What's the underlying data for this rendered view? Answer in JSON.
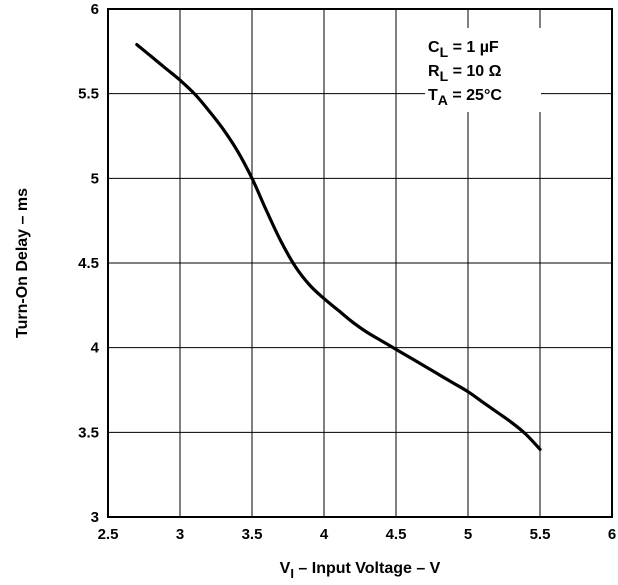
{
  "chart_data": {
    "type": "line",
    "title": "",
    "xlabel": "V",
    "xlabel_sub": "I",
    "xlabel_rest": " – Input Voltage – V",
    "ylabel": "Turn-On Delay – ms",
    "xlim": [
      2.5,
      6
    ],
    "ylim": [
      3,
      6
    ],
    "x_ticks": [
      2.5,
      3,
      3.5,
      4,
      4.5,
      5,
      5.5,
      6
    ],
    "y_ticks": [
      3,
      3.5,
      4,
      4.5,
      5,
      5.5,
      6
    ],
    "x_tick_labels": [
      "2.5",
      "3",
      "3.5",
      "4",
      "4.5",
      "5",
      "5.5",
      "6"
    ],
    "y_tick_labels": [
      "3",
      "3.5",
      "4",
      "4.5",
      "5",
      "5.5",
      "6"
    ],
    "grid": true,
    "legend_position": "top-right",
    "conditions": [
      {
        "sym": "C",
        "sub": "L",
        "rest": " = 1 µF"
      },
      {
        "sym": "R",
        "sub": "L",
        "rest": " = 10 Ω"
      },
      {
        "sym": "T",
        "sub": "A",
        "rest": " = 25°C"
      }
    ],
    "series": [
      {
        "x": [
          2.7,
          2.8,
          2.9,
          3.0,
          3.1,
          3.2,
          3.3,
          3.4,
          3.5,
          3.6,
          3.7,
          3.8,
          3.9,
          4.0,
          4.1,
          4.2,
          4.3,
          4.4,
          4.5,
          4.6,
          4.7,
          4.8,
          4.9,
          5.0,
          5.1,
          5.2,
          5.3,
          5.4,
          5.5
        ],
        "y": [
          5.79,
          5.72,
          5.65,
          5.58,
          5.5,
          5.4,
          5.29,
          5.16,
          5.0,
          4.81,
          4.63,
          4.48,
          4.37,
          4.29,
          4.22,
          4.15,
          4.09,
          4.04,
          3.99,
          3.94,
          3.89,
          3.84,
          3.79,
          3.74,
          3.68,
          3.62,
          3.56,
          3.49,
          3.4
        ]
      }
    ]
  }
}
